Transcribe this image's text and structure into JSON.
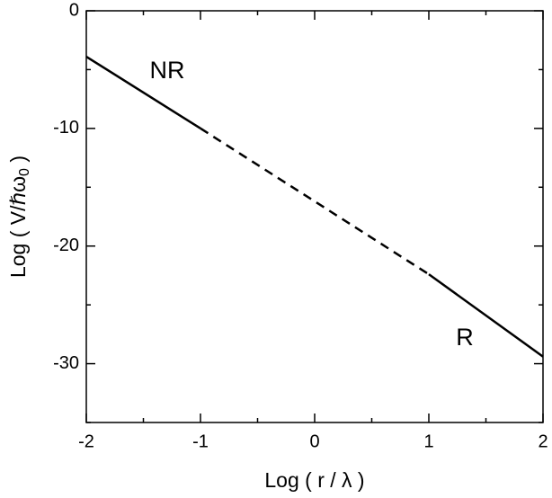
{
  "chart_data": {
    "type": "line",
    "xlabel": "Log ( r / λ )",
    "ylabel": {
      "main": "Log ( V/ℏω",
      "sub": "0",
      "end": " )"
    },
    "xlim": [
      -2,
      2
    ],
    "ylim": [
      -35,
      0
    ],
    "xticks": [
      -2,
      -1,
      0,
      1,
      2
    ],
    "yticks": [
      -30,
      -20,
      -10,
      0
    ],
    "xminorticks": [
      -1.5,
      -0.5,
      0.5,
      1.5
    ],
    "yminorticks": [
      -35,
      -25,
      -15,
      -5
    ],
    "series": [
      {
        "color": "#000000",
        "dash": false,
        "x": [
          -2,
          -1
        ],
        "values": [
          -3.9,
          -10
        ]
      },
      {
        "color": "#000000",
        "dash": true,
        "x": [
          -1,
          1
        ],
        "values": [
          -10,
          -22.4
        ]
      },
      {
        "color": "#000000",
        "dash": false,
        "x": [
          1,
          2
        ],
        "values": [
          -22.4,
          -29.4
        ]
      }
    ],
    "annotations": [
      "NR",
      "R"
    ]
  }
}
